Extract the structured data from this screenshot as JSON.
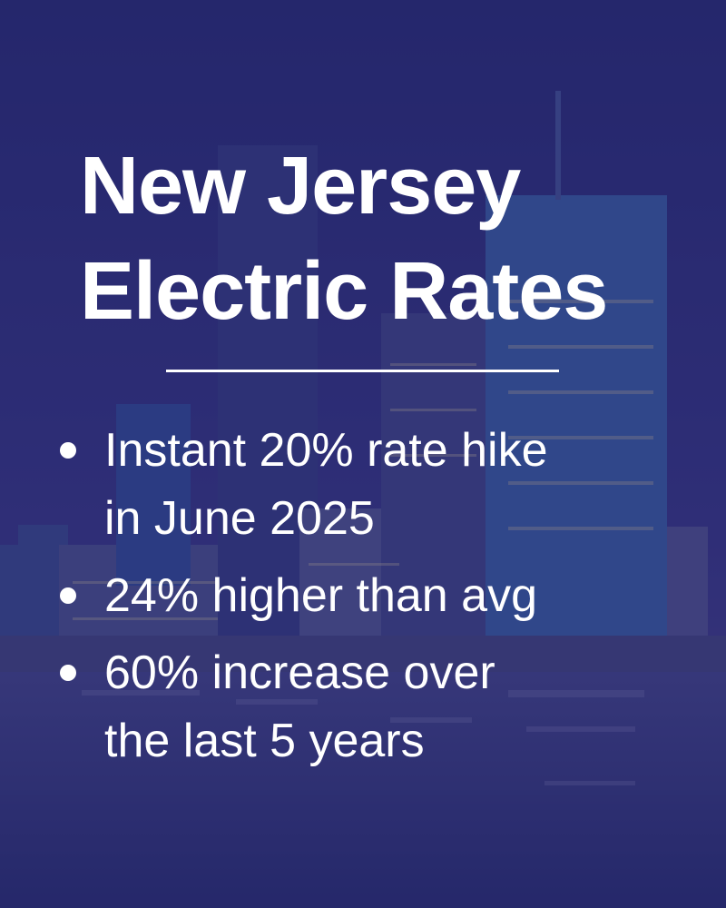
{
  "title": {
    "lines": [
      "New Jersey",
      "Electric Rates"
    ]
  },
  "bullets": [
    {
      "lines": [
        "Instant 20% rate hike",
        "in June 2025"
      ]
    },
    {
      "lines": [
        "24% higher than avg"
      ]
    },
    {
      "lines": [
        "60% increase over",
        "the last 5 years"
      ]
    }
  ]
}
